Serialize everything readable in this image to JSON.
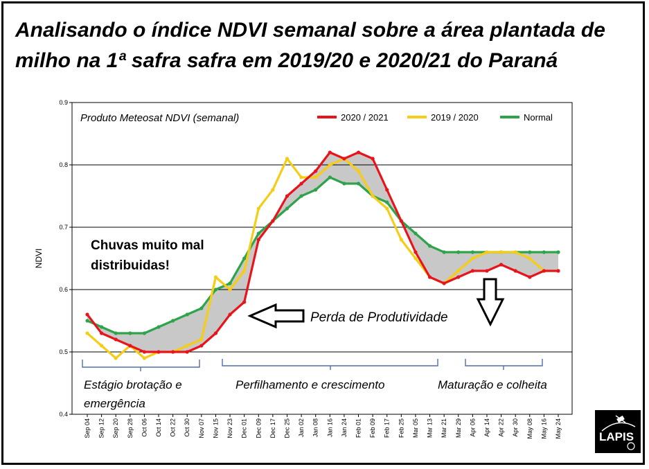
{
  "title": "Analisando o índice NDVI semanal sobre a área plantada de milho na 1ª safra  safra em 2019/20 e 2020/21 do Paraná",
  "logo_text": "LAPIS",
  "chart_data": {
    "type": "line",
    "product_label": "Produto Meteosat NDVI (semanal)",
    "ylabel": "NDVI",
    "ylim": [
      0.4,
      0.9
    ],
    "yticks": [
      0.4,
      0.5,
      0.6,
      0.7,
      0.8,
      0.9
    ],
    "yticks_labels": [
      "0.4",
      "0.5",
      "0.6",
      "0.7",
      "0.8",
      "0.9"
    ],
    "categories": [
      "Sep 04",
      "Sep 12",
      "Sep 20",
      "Sep 28",
      "Oct 06",
      "Oct 14",
      "Oct 22",
      "Oct 30",
      "Nov 07",
      "Nov 15",
      "Nov 23",
      "Dec 01",
      "Dec 09",
      "Dec 17",
      "Dec 25",
      "Jan 02",
      "Jan 08",
      "Jan 16",
      "Jan 24",
      "Feb 01",
      "Feb 09",
      "Feb 17",
      "Feb 25",
      "Mar 05",
      "Mar 13",
      "Mar 21",
      "Mar 29",
      "Apr 06",
      "Apr 14",
      "Apr 22",
      "Apr 30",
      "May 08",
      "May 16",
      "May 24"
    ],
    "series": [
      {
        "name": "2020 / 2021",
        "color": "#e8141c",
        "values": [
          0.56,
          0.53,
          0.52,
          0.51,
          0.5,
          0.5,
          0.5,
          0.5,
          0.51,
          0.53,
          0.56,
          0.58,
          0.68,
          0.71,
          0.75,
          0.77,
          0.79,
          0.82,
          0.81,
          0.82,
          0.81,
          0.76,
          0.71,
          0.66,
          0.62,
          0.61,
          0.62,
          0.63,
          0.63,
          0.64,
          0.63,
          0.62,
          0.63,
          0.63
        ]
      },
      {
        "name": "2019 / 2020",
        "color": "#f5cd18",
        "values": [
          0.53,
          0.51,
          0.49,
          0.51,
          0.49,
          0.5,
          0.5,
          0.51,
          0.52,
          0.62,
          0.6,
          0.63,
          0.73,
          0.76,
          0.81,
          0.78,
          0.78,
          0.8,
          0.81,
          0.79,
          0.75,
          0.73,
          0.68,
          0.65,
          0.62,
          0.61,
          0.63,
          0.65,
          0.66,
          0.66,
          0.66,
          0.65,
          0.63,
          0.63
        ]
      },
      {
        "name": "Normal",
        "color": "#2ea34a",
        "values": [
          0.55,
          0.54,
          0.53,
          0.53,
          0.53,
          0.54,
          0.55,
          0.56,
          0.57,
          0.6,
          0.61,
          0.65,
          0.69,
          0.71,
          0.73,
          0.75,
          0.76,
          0.78,
          0.77,
          0.77,
          0.75,
          0.74,
          0.71,
          0.69,
          0.67,
          0.66,
          0.66,
          0.66,
          0.66,
          0.66,
          0.66,
          0.66,
          0.66,
          0.66
        ]
      }
    ],
    "annotations": {
      "rain": [
        "Chuvas muito mal",
        "distribuidas!"
      ],
      "loss": "Perda de Produtividade",
      "stage1": [
        "Estágio brotação e",
        "emergência"
      ],
      "stage2": "Perfilhamento e crescimento",
      "stage3": "Maturação e colheita"
    },
    "grid": true,
    "legend_position": "top-right",
    "colors": {
      "shade": "#c8c8c8",
      "axis": "#000000",
      "background": "#ffffff"
    }
  }
}
